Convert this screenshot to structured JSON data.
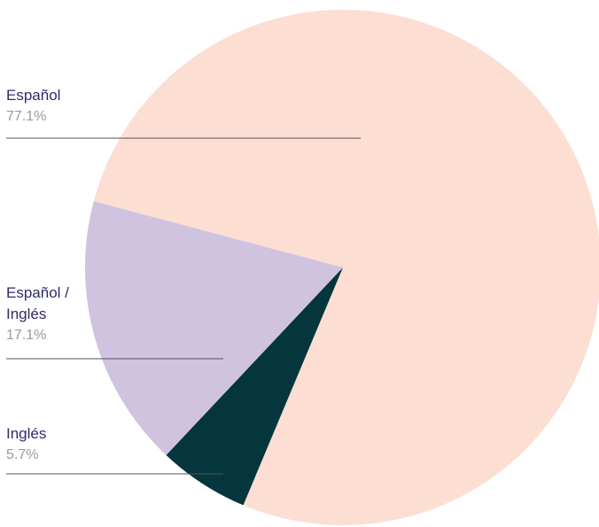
{
  "chart_data": {
    "type": "pie",
    "categories": [
      "Español",
      "Inglés",
      "Español / Inglés"
    ],
    "values": [
      77.1,
      5.7,
      17.1
    ],
    "value_labels": [
      "77.1%",
      "5.7%",
      "17.1%"
    ],
    "colors": [
      "#fcded3",
      "#05363d",
      "#cfc3e0"
    ]
  }
}
